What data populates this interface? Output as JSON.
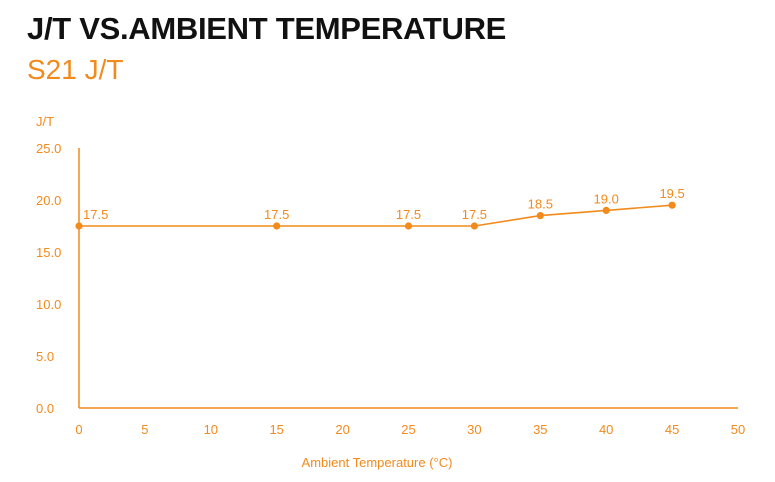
{
  "header": {
    "title": "J/T VS.AMBIENT TEMPERATURE",
    "subtitle": "S21 J/T"
  },
  "colors": {
    "accent": "#f28a1c",
    "title": "#111111"
  },
  "chart_data": {
    "type": "line",
    "title": "J/T VS.AMBIENT TEMPERATURE",
    "subtitle": "S21 J/T",
    "xlabel": "Ambient Temperature (°C)",
    "ylabel": "J/T",
    "xlim": [
      0,
      50
    ],
    "ylim": [
      0,
      25
    ],
    "x_ticks": [
      0,
      5,
      10,
      15,
      20,
      25,
      30,
      35,
      40,
      45,
      50
    ],
    "y_ticks": [
      "0.0",
      "5.0",
      "10.0",
      "15.0",
      "20.0",
      "25.0"
    ],
    "grid": false,
    "series": [
      {
        "x": [
          0,
          15,
          25,
          30,
          35,
          40,
          45
        ],
        "y": [
          17.5,
          17.5,
          17.5,
          17.5,
          18.5,
          19.0,
          19.5
        ],
        "labels": [
          "17.5",
          "17.5",
          "17.5",
          "17.5",
          "18.5",
          "19.0",
          "19.5"
        ]
      }
    ]
  }
}
